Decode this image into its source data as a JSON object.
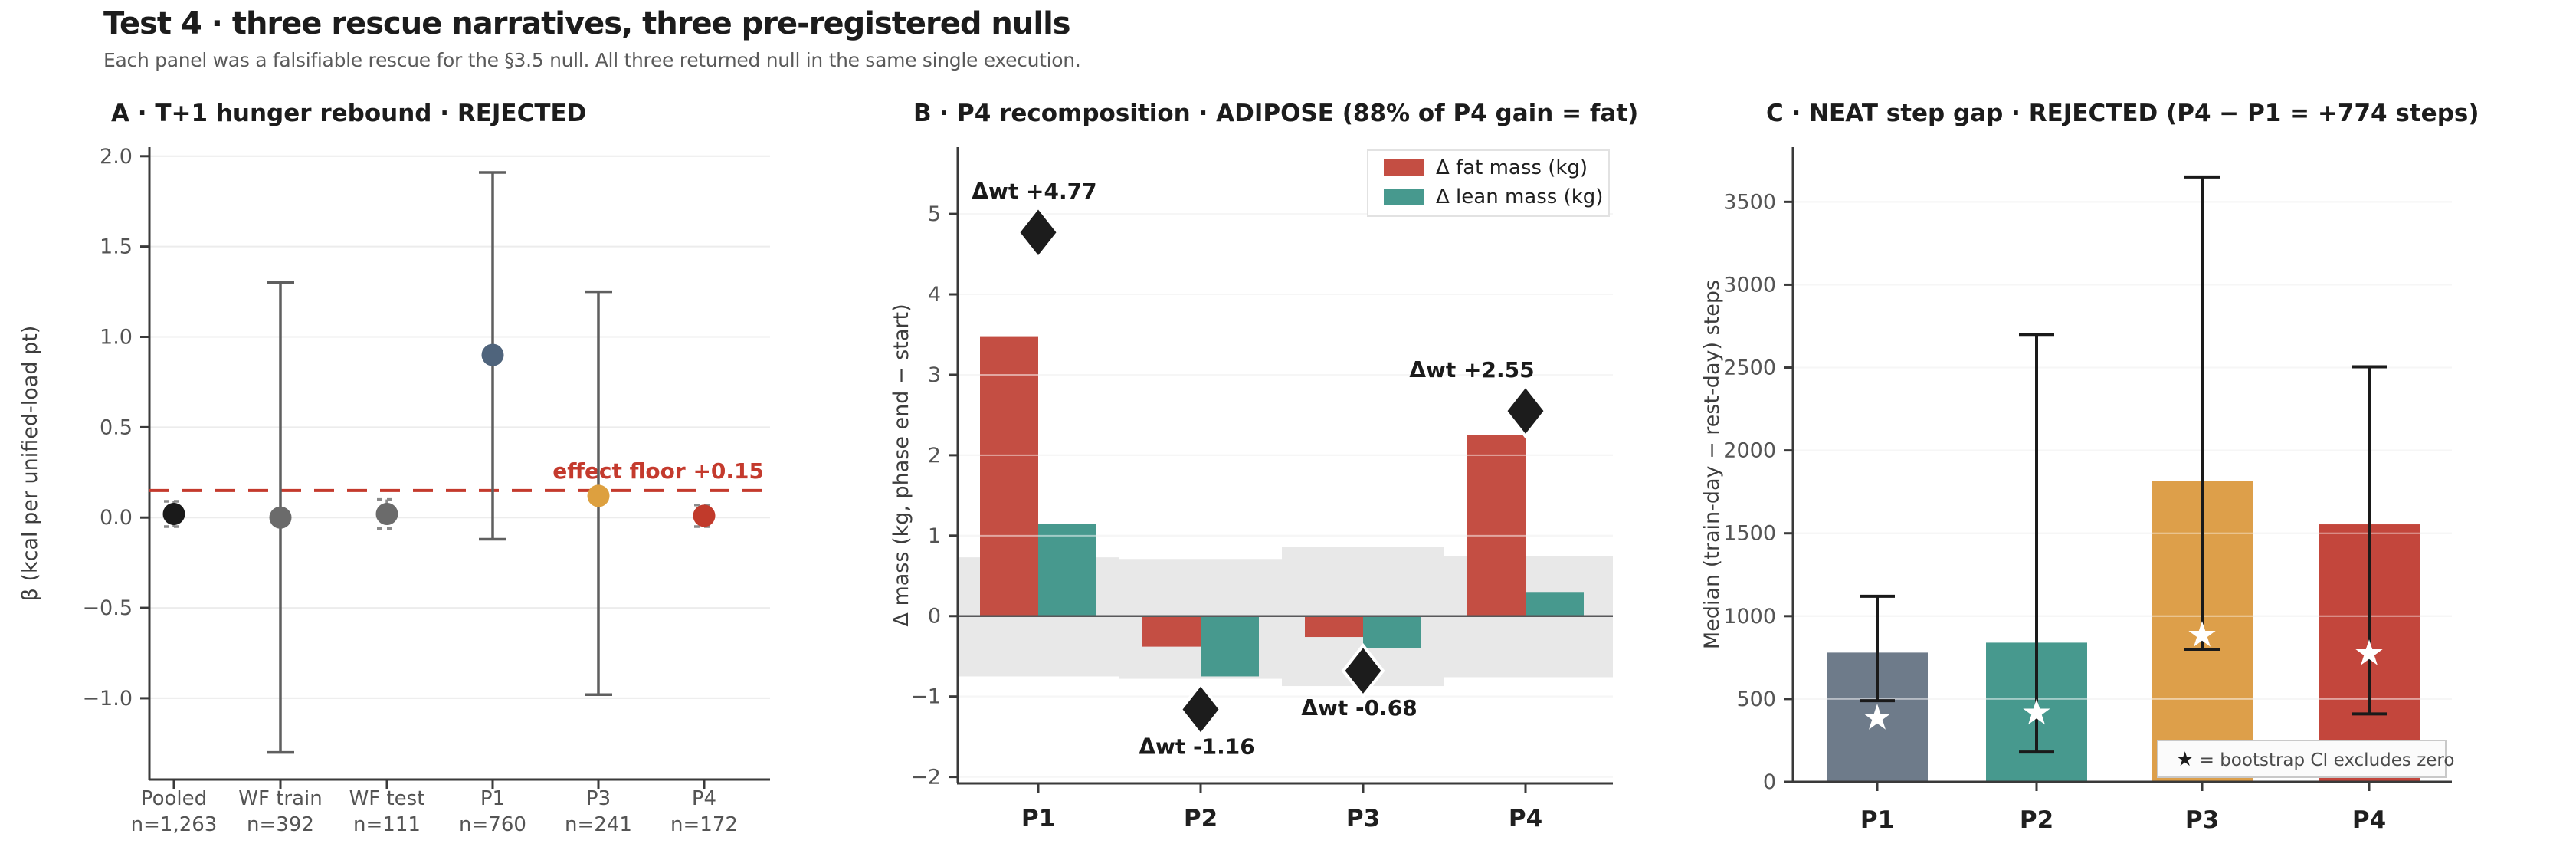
{
  "header": {
    "title": "Test 4 · three rescue narratives, three pre-registered nulls",
    "subtitle": "Each panel was a falsifiable rescue for the §3.5 null. All three returned null in the same single execution."
  },
  "colors": {
    "grid": "#ececec",
    "spine": "#3a3a3a",
    "tick_label": "#545454",
    "title_text": "#1c1c1c",
    "noise_band": "#e8e8e8",
    "zero_line": "#58585a",
    "error_bar_a": "#5f5f5f",
    "error_bar_c": "#1a1a1a"
  },
  "chart_data": [
    {
      "id": "panel-a",
      "type": "scatter",
      "title": "A · T+1 hunger rebound  ·  REJECTED",
      "ylabel": "β  (kcal per unified-load pt)",
      "ylim": [
        -1.45,
        2.05
      ],
      "yticks": [
        2.0,
        1.5,
        1.0,
        0.5,
        0.0,
        -0.5,
        -1.0
      ],
      "grid": true,
      "categories": [
        "Pooled",
        "WF train",
        "WF test",
        "P1",
        "P3",
        "P4"
      ],
      "n_labels": [
        "n=1,263",
        "n=392",
        "n=111",
        "n=760",
        "n=241",
        "n=172"
      ],
      "points": [
        {
          "cat": "Pooled",
          "beta": 0.02,
          "ci": [
            -0.05,
            0.09
          ],
          "color": "#1a1a1a",
          "small": true
        },
        {
          "cat": "WF train",
          "beta": 0.0,
          "ci": [
            -1.3,
            1.3
          ],
          "color": "#6b6b6b",
          "small": false
        },
        {
          "cat": "WF test",
          "beta": 0.02,
          "ci": [
            -0.06,
            0.1
          ],
          "color": "#6b6b6b",
          "small": true
        },
        {
          "cat": "P1",
          "beta": 0.9,
          "ci": [
            -0.12,
            1.91
          ],
          "color": "#4f647c",
          "small": false
        },
        {
          "cat": "P3",
          "beta": 0.12,
          "ci": [
            -0.98,
            1.25
          ],
          "color": "#dda03f",
          "small": false
        },
        {
          "cat": "P4",
          "beta": 0.01,
          "ci": [
            -0.05,
            0.07
          ],
          "color": "#c13a2b",
          "small": true
        }
      ],
      "effect_floor": {
        "value": 0.15,
        "label": "effect floor +0.15",
        "color": "#c43a2d"
      }
    },
    {
      "id": "panel-b",
      "type": "bar",
      "title": "B · P4 recomposition  ·  ADIPOSE  (88% of P4 gain = fat)",
      "ylabel": "Δ mass (kg, phase end − start)",
      "ylim": [
        -2.08,
        5.83
      ],
      "yticks": [
        5,
        4,
        3,
        2,
        1,
        0,
        -1,
        -2
      ],
      "grid": true,
      "categories": [
        "P1",
        "P2",
        "P3",
        "P4"
      ],
      "series": [
        {
          "name": "Δ fat mass (kg)",
          "color": "#c44e43",
          "values": [
            3.48,
            -0.38,
            -0.26,
            2.25
          ]
        },
        {
          "name": "Δ lean mass (kg)",
          "color": "#47998e",
          "values": [
            1.15,
            -0.75,
            -0.4,
            0.3
          ]
        }
      ],
      "legend_position": "upper right",
      "weight_change_markers": [
        {
          "cat": "P1",
          "value": 4.77,
          "label": "Δwt +4.77",
          "label_side": "above",
          "label_dx": -5
        },
        {
          "cat": "P2",
          "value": -1.16,
          "label": "Δwt -1.16",
          "label_side": "below",
          "label_dx": -5
        },
        {
          "cat": "P3",
          "value": -0.68,
          "label": "Δwt -0.68",
          "label_side": "below",
          "label_dx": -5
        },
        {
          "cat": "P4",
          "value": 2.55,
          "label": "Δwt +2.55",
          "label_side": "above",
          "label_dx": -70
        }
      ],
      "noise_band": {
        "color": "#e8e8e8",
        "ranges": [
          [
            -0.75,
            0.73
          ],
          [
            -0.78,
            0.71
          ],
          [
            -0.87,
            0.86
          ],
          [
            -0.76,
            0.75
          ]
        ]
      }
    },
    {
      "id": "panel-c",
      "type": "bar",
      "title": "C · NEAT step gap  ·  REJECTED  (P4 − P1 = +774 steps)",
      "ylabel": "Median (train-day − rest-day) steps",
      "ylim": [
        0,
        3830
      ],
      "yticks": [
        0,
        500,
        1000,
        1500,
        2000,
        2500,
        3000,
        3500
      ],
      "grid": true,
      "categories": [
        "P1",
        "P2",
        "P3",
        "P4"
      ],
      "values": [
        780,
        840,
        1815,
        1554
      ],
      "bar_colors": [
        "#6e7b8a",
        "#47998e",
        "#dd9f4a",
        "#c3463c"
      ],
      "ci": [
        [
          490,
          1120
        ],
        [
          180,
          2700
        ],
        [
          800,
          3650
        ],
        [
          410,
          2505
        ]
      ],
      "star_values": [
        390,
        420,
        890,
        780
      ],
      "star_color": "#ffffff",
      "note": {
        "star": "★",
        "text": " = bootstrap CI excludes zero"
      }
    }
  ]
}
